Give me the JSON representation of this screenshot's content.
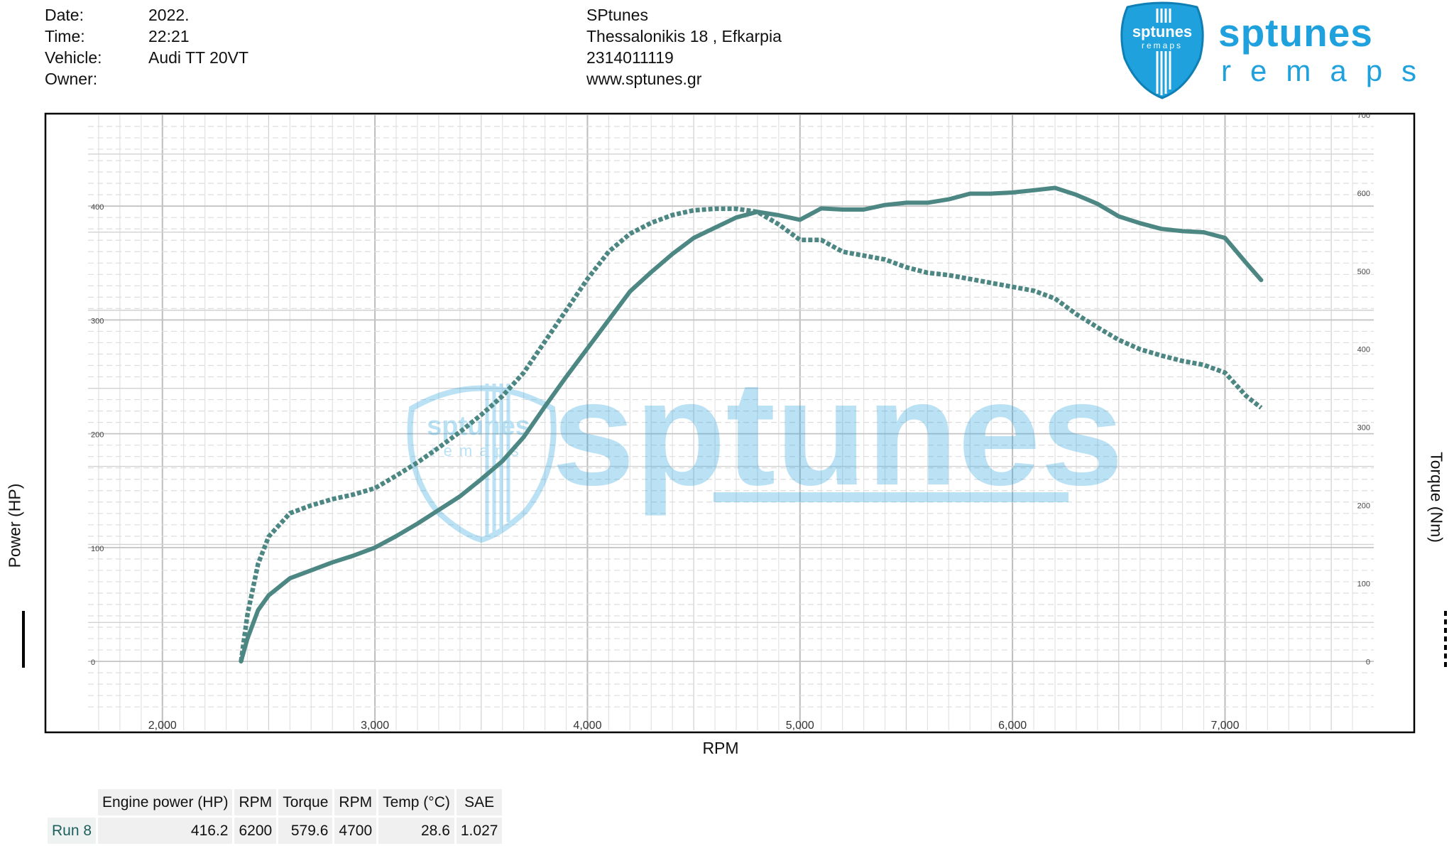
{
  "header": {
    "labels": [
      "Date:",
      "Time:",
      "Vehicle:",
      "Owner:"
    ],
    "date": "2022.",
    "time": "22:21",
    "vehicle": "Audi TT 20VT",
    "owner": "",
    "shop_name": "SPtunes",
    "shop_address": "Thessalonikis 18 , Efkarpia",
    "shop_phone": "2314011119",
    "shop_web": "www.sptunes.gr"
  },
  "logo": {
    "word1": "sptunes",
    "word2": "remaps",
    "color": "#1ea1dc"
  },
  "watermark": {
    "text": "sptunes",
    "sub": "remaps"
  },
  "results": {
    "headers": [
      "Engine power (HP)",
      "RPM",
      "Torque",
      "RPM",
      "Temp (°C)",
      "SAE"
    ],
    "rows": [
      {
        "name": "Run 8",
        "values": [
          "416.2",
          "6200",
          "579.6",
          "4700",
          "28.6",
          "1.027"
        ]
      }
    ]
  },
  "chart_data": {
    "type": "line",
    "xlabel": "RPM",
    "ylabel": "Power (HP)",
    "y2label": "Torque (Nm)",
    "x_ticks": [
      2000,
      3000,
      4000,
      5000,
      6000,
      7000
    ],
    "x_tick_labels": [
      "2,000",
      "3,000",
      "4,000",
      "5,000",
      "6,000",
      "7,000"
    ],
    "xlim": [
      1650,
      7700
    ],
    "ylim": [
      -43,
      480
    ],
    "y_ticks": [
      0,
      100,
      200,
      300,
      400
    ],
    "y2lim": [
      -62.5,
      700
    ],
    "y2_ticks": [
      0,
      100,
      200,
      300,
      400,
      500,
      600,
      700
    ],
    "grid": true,
    "line_color": "#4d8783",
    "series": [
      {
        "name": "Engine power (HP)",
        "axis": "left",
        "style": "solid",
        "x": [
          2370,
          2400,
          2450,
          2500,
          2600,
          2700,
          2800,
          2900,
          3000,
          3100,
          3200,
          3300,
          3400,
          3500,
          3600,
          3700,
          3800,
          3900,
          4000,
          4100,
          4200,
          4300,
          4400,
          4500,
          4600,
          4700,
          4800,
          4900,
          5000,
          5100,
          5200,
          5300,
          5400,
          5500,
          5600,
          5700,
          5800,
          5900,
          6000,
          6100,
          6200,
          6300,
          6400,
          6500,
          6600,
          6700,
          6800,
          6900,
          7000,
          7100,
          7170
        ],
        "y": [
          0,
          20,
          45,
          58,
          73,
          80,
          87,
          93,
          100,
          110,
          121,
          133,
          145,
          160,
          176,
          197,
          224,
          250,
          275,
          300,
          325,
          342,
          358,
          372,
          381,
          390,
          395,
          392,
          388,
          398,
          397,
          397,
          401,
          403,
          403,
          406,
          411,
          411,
          412,
          414,
          416,
          410,
          402,
          391,
          385,
          380,
          378,
          377,
          372,
          350,
          335
        ]
      },
      {
        "name": "Torque (Nm)",
        "axis": "right",
        "style": "dashed",
        "x": [
          2370,
          2400,
          2450,
          2500,
          2600,
          2700,
          2800,
          2900,
          3000,
          3100,
          3200,
          3300,
          3400,
          3500,
          3600,
          3700,
          3800,
          3900,
          4000,
          4100,
          4200,
          4300,
          4400,
          4500,
          4600,
          4700,
          4800,
          4900,
          5000,
          5100,
          5200,
          5300,
          5400,
          5500,
          5600,
          5700,
          5800,
          5900,
          6000,
          6100,
          6200,
          6300,
          6400,
          6500,
          6600,
          6700,
          6800,
          6900,
          7000,
          7100,
          7170
        ],
        "y": [
          0,
          60,
          125,
          160,
          190,
          200,
          208,
          214,
          222,
          238,
          255,
          274,
          294,
          316,
          340,
          370,
          410,
          450,
          490,
          525,
          548,
          562,
          572,
          578,
          580,
          580,
          576,
          560,
          540,
          540,
          525,
          520,
          515,
          505,
          498,
          495,
          490,
          485,
          480,
          475,
          465,
          445,
          428,
          412,
          400,
          392,
          385,
          380,
          370,
          340,
          325
        ]
      }
    ]
  }
}
